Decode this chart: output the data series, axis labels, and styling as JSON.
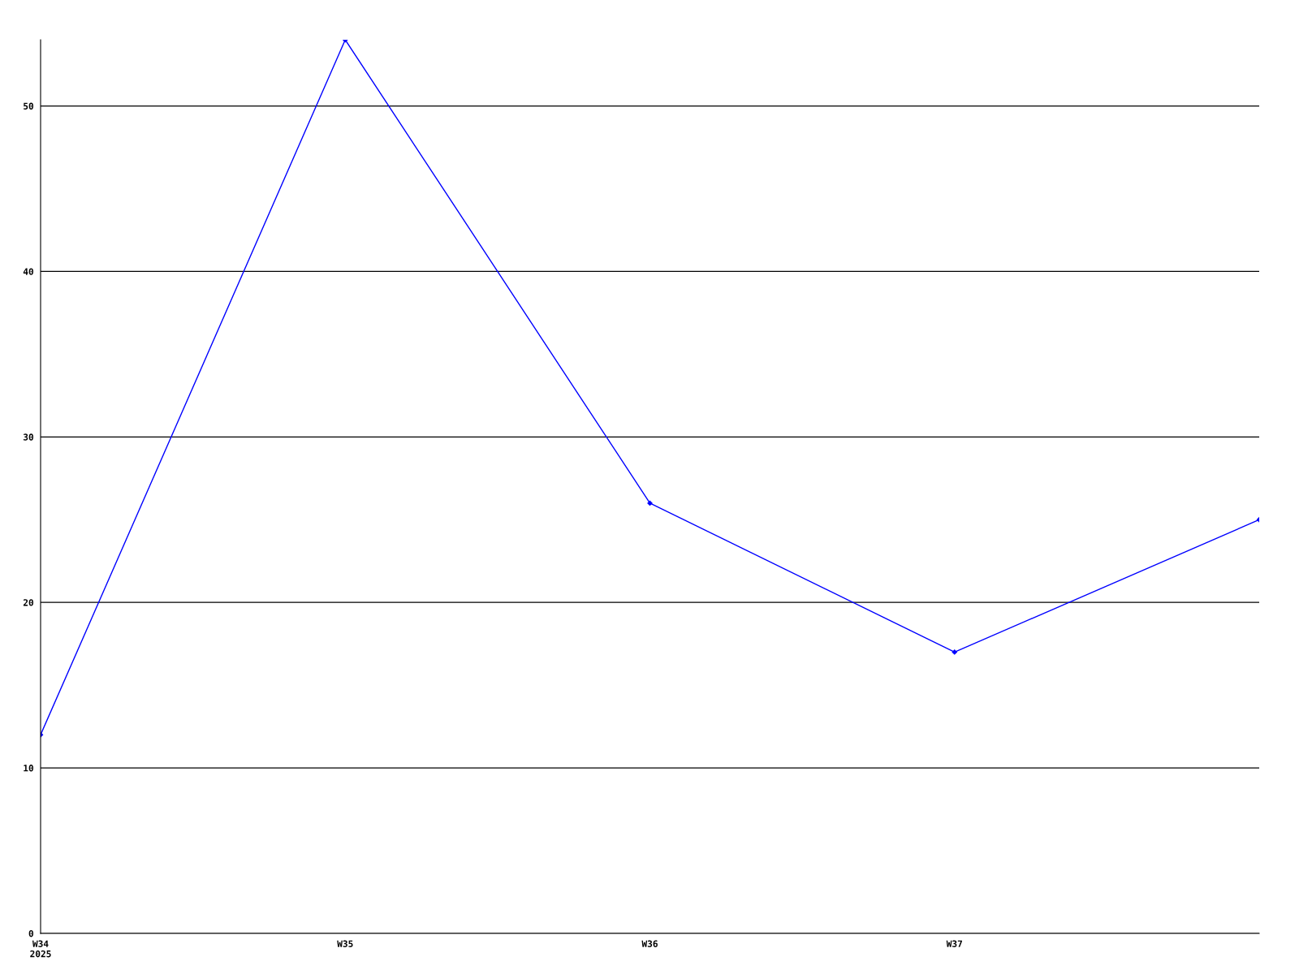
{
  "chart_data": {
    "type": "line",
    "categories": [
      "W34\n2025",
      "W35",
      "W36",
      "W37",
      null
    ],
    "series": [
      {
        "color": "#0000ff",
        "values": [
          12,
          54,
          26,
          17,
          25
        ]
      }
    ],
    "ylim": [
      0,
      54
    ],
    "yticks": [
      0,
      10,
      20,
      30,
      40,
      50
    ],
    "grid": "y",
    "marker": "diamond",
    "line_style": "solid",
    "legend": false
  }
}
